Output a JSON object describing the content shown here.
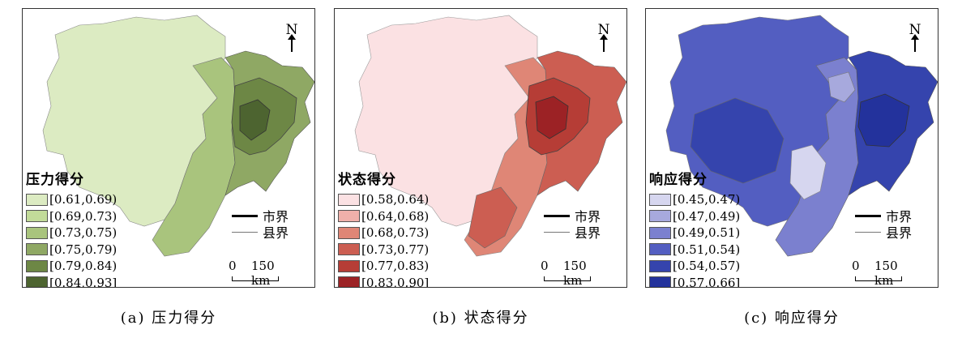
{
  "panels": [
    {
      "legend_title": "压力得分",
      "classes": [
        "[0.61,0.69)",
        "[0.69,0.73)",
        "[0.73,0.75)",
        "[0.75,0.79)",
        "[0.79,0.84)",
        "[0.84,0.93]"
      ],
      "colors": [
        "#dcebc2",
        "#c2db99",
        "#a9c47d",
        "#8fa864",
        "#6d8745",
        "#4d6430"
      ],
      "caption": "(a) 压力得分"
    },
    {
      "legend_title": "状态得分",
      "classes": [
        "[0.58,0.64)",
        "[0.64,0.68)",
        "[0.68,0.73)",
        "[0.73,0.77)",
        "[0.77,0.83)",
        "[0.83,0.90]"
      ],
      "colors": [
        "#fbe1e3",
        "#efb0aa",
        "#df8676",
        "#cc5e52",
        "#b63d36",
        "#9c2225"
      ],
      "caption": "(b) 状态得分"
    },
    {
      "legend_title": "响应得分",
      "classes": [
        "[0.45,0.47)",
        "[0.47,0.49)",
        "[0.49,0.51)",
        "[0.51,0.54)",
        "[0.54,0.57)",
        "[0.57,0.66]"
      ],
      "colors": [
        "#d6d6ef",
        "#a7a9dd",
        "#7b80cf",
        "#535ec1",
        "#3544ad",
        "#23329c"
      ],
      "caption": "(c) 响应得分"
    }
  ],
  "north_label": "N",
  "boundaries": {
    "city": "市界",
    "county": "县界"
  },
  "scale": {
    "zero": "0",
    "distance": "150 km"
  }
}
